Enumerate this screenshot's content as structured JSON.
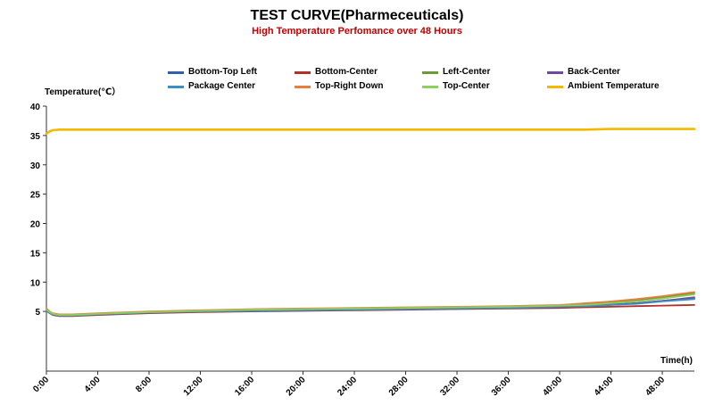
{
  "chart_data": {
    "type": "line",
    "title": "TEST CURVE(Pharmeceuticals)",
    "subtitle": "High Temperature Perfomance over 48 Hours",
    "xlabel": "Time(h)",
    "ylabel": "Temperature(℃）",
    "xlim": [
      0,
      50.5
    ],
    "ylim": [
      0,
      40
    ],
    "x_unit": "hours",
    "yticks": [
      "40",
      "35",
      "30",
      "25",
      "20",
      "15",
      "10",
      "5"
    ],
    "xticks": [
      "0:00",
      "4:00",
      "8:00",
      "12:00",
      "16:00",
      "20:00",
      "24:00",
      "28:00",
      "32:00",
      "36:00",
      "40:00",
      "44:00",
      "48:00"
    ],
    "grid": false,
    "legend_position": "top",
    "x": [
      0,
      0.25,
      0.5,
      1,
      2,
      4,
      8,
      12,
      16,
      20,
      24,
      28,
      32,
      36,
      40,
      42,
      44,
      46,
      48,
      50.5
    ],
    "series": [
      {
        "name": "Bottom-Top Left",
        "color": "#2e5fa8",
        "values": [
          5.3,
          4.8,
          4.5,
          4.3,
          4.3,
          4.5,
          4.8,
          5.0,
          5.2,
          5.3,
          5.4,
          5.5,
          5.6,
          5.7,
          5.9,
          6.0,
          6.2,
          6.4,
          6.8,
          7.3
        ]
      },
      {
        "name": "Bottom-Center",
        "color": "#b0302a",
        "values": [
          5.2,
          4.7,
          4.4,
          4.2,
          4.2,
          4.4,
          4.7,
          4.9,
          5.0,
          5.1,
          5.2,
          5.3,
          5.4,
          5.5,
          5.6,
          5.7,
          5.8,
          5.9,
          6.0,
          6.1
        ]
      },
      {
        "name": "Left-Center",
        "color": "#6b9a3c",
        "values": [
          5.4,
          4.9,
          4.6,
          4.4,
          4.4,
          4.6,
          4.9,
          5.1,
          5.3,
          5.4,
          5.5,
          5.6,
          5.7,
          5.8,
          6.0,
          6.2,
          6.5,
          6.9,
          7.4,
          8.1
        ]
      },
      {
        "name": "Back-Center",
        "color": "#6a4b9a",
        "values": [
          5.2,
          4.8,
          4.5,
          4.3,
          4.3,
          4.5,
          4.8,
          5.0,
          5.1,
          5.2,
          5.3,
          5.4,
          5.5,
          5.6,
          5.8,
          5.9,
          6.1,
          6.4,
          6.8,
          7.4
        ]
      },
      {
        "name": "Package Center",
        "color": "#3b8fc4",
        "values": [
          5.1,
          4.7,
          4.5,
          4.3,
          4.3,
          4.5,
          4.8,
          5.0,
          5.1,
          5.2,
          5.3,
          5.4,
          5.5,
          5.6,
          5.8,
          5.9,
          6.1,
          6.3,
          6.7,
          7.1
        ]
      },
      {
        "name": "Top-Right Down",
        "color": "#e4803c",
        "values": [
          5.5,
          5.0,
          4.7,
          4.5,
          4.5,
          4.7,
          5.0,
          5.2,
          5.4,
          5.5,
          5.6,
          5.7,
          5.8,
          5.9,
          6.1,
          6.4,
          6.7,
          7.1,
          7.6,
          8.3
        ]
      },
      {
        "name": "Top-Center",
        "color": "#8fcf5a",
        "values": [
          5.3,
          4.9,
          4.6,
          4.4,
          4.4,
          4.6,
          4.9,
          5.1,
          5.3,
          5.4,
          5.5,
          5.6,
          5.7,
          5.8,
          6.0,
          6.1,
          6.4,
          6.7,
          7.2,
          7.9
        ]
      },
      {
        "name": "Ambient Temperature",
        "color": "#f3b800",
        "values": [
          35.3,
          35.7,
          35.9,
          36.0,
          36.0,
          36.0,
          36.0,
          36.0,
          36.0,
          36.0,
          36.0,
          36.0,
          36.0,
          36.0,
          36.0,
          36.0,
          36.1,
          36.1,
          36.1,
          36.1
        ]
      }
    ]
  }
}
